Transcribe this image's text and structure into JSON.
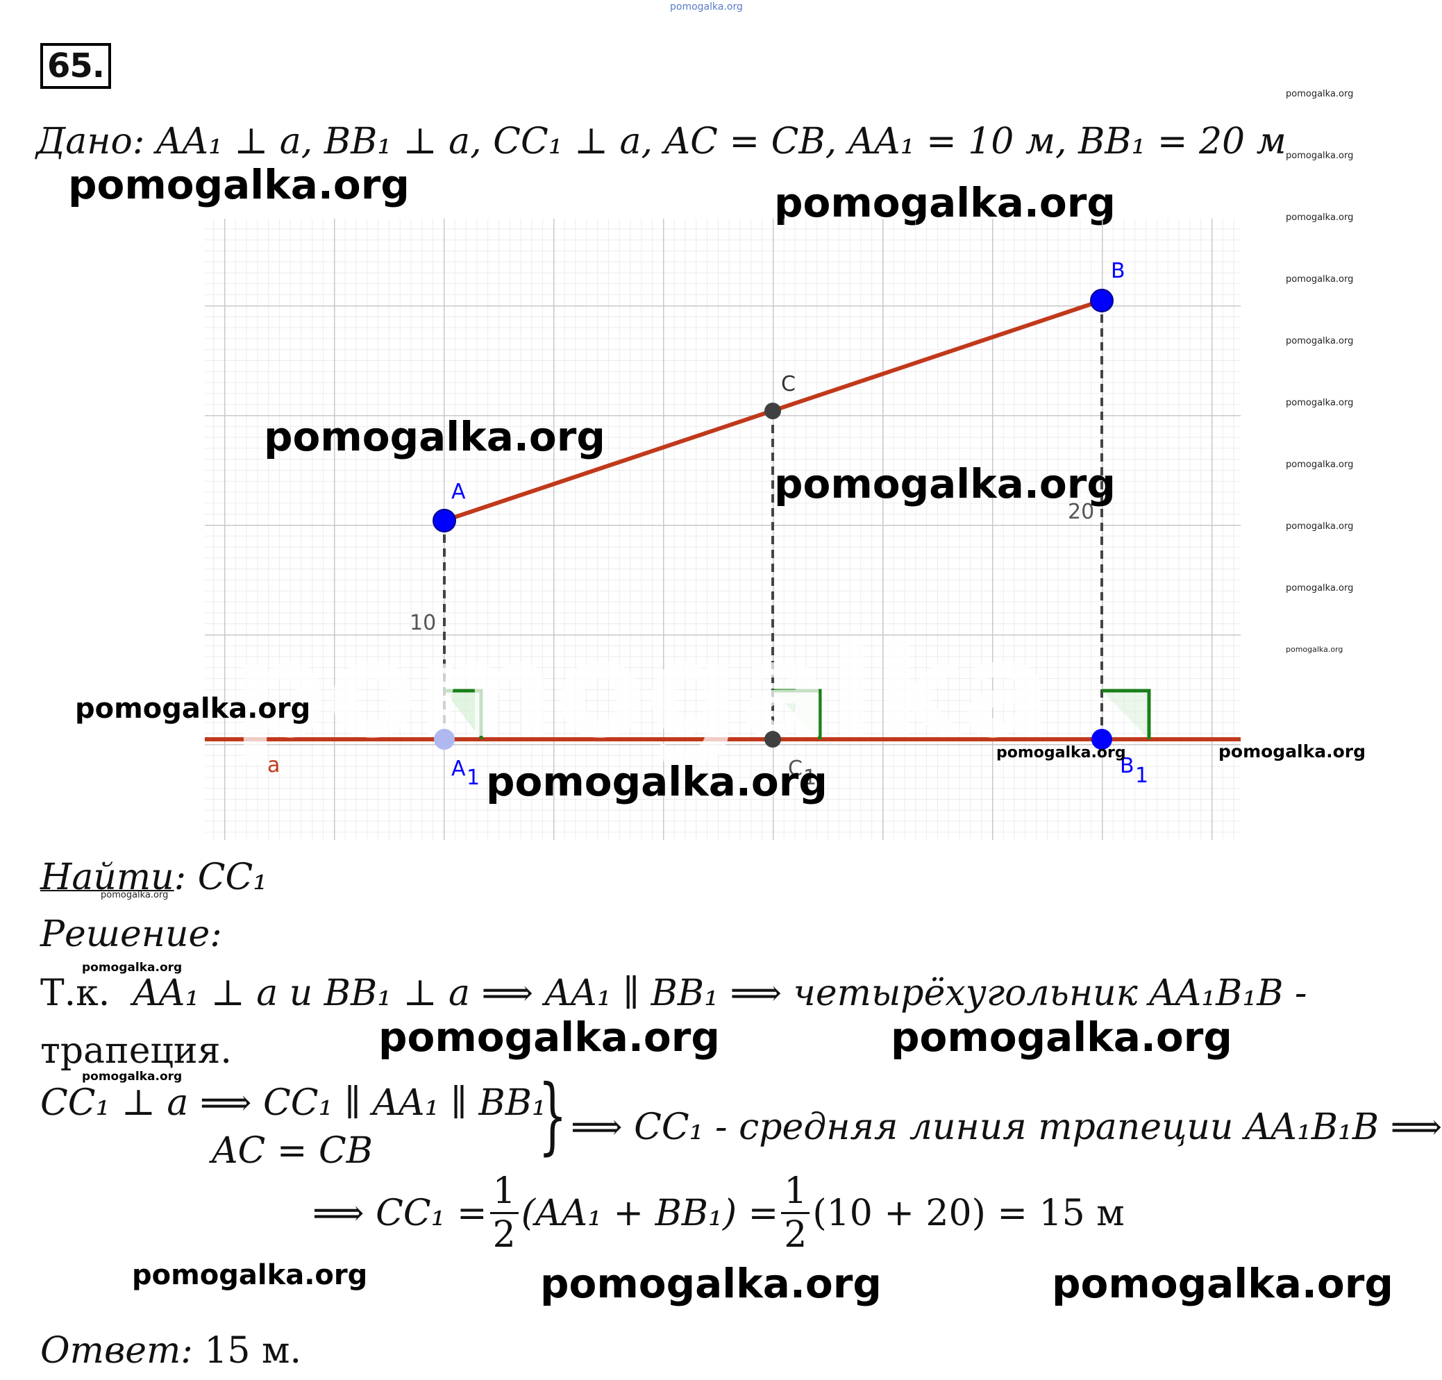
{
  "header": {
    "watermark": "pomogalka.org",
    "problem_number": "65."
  },
  "given": {
    "label": "Дано",
    "statement_1": "AA",
    "statement_text": ": AA₁ ⊥ a, BB₁ ⊥ a, CC₁ ⊥ a, AC = CB, AA₁ = 10 м, BB₁ = 20 м"
  },
  "figure": {
    "points": {
      "A": "A",
      "B": "B",
      "C": "C",
      "A1": "A",
      "B1": "B",
      "C1": "C",
      "sub1": "1",
      "line_a": "a"
    },
    "tick_10": "10",
    "tick_20": "20",
    "colors": {
      "segment": "#c0391b",
      "point_blue": "#0000ff",
      "point_gray": "#404040",
      "grid": "#dcdcdc",
      "dashed": "#444444",
      "right_angle": "#1a7f1a"
    }
  },
  "find": {
    "label": "Найти",
    "value": ": CC₁"
  },
  "solution": {
    "label": "Решение:",
    "line1_prefix": "Т.к.",
    "line1_math": "AA₁ ⊥ a и BB₁ ⊥ a ⟹ AA₁ ∥ BB₁ ⟹ четырёхугольник AA₁B₁B -",
    "line2": "трапеция.",
    "line3a": "CC₁ ⊥ a ⟹ CC₁ ∥ AA₁ ∥ BB₁",
    "line3b": "AC = CB",
    "line3c": "⟹ CC₁ - средняя линия трапеции AA₁B₁B ⟹",
    "formula_left": "⟹ CC₁ =",
    "frac_num": "1",
    "frac_den": "2",
    "formula_mid": "(AA₁ + BB₁) =",
    "formula_right": "(10 + 20) = 15 м"
  },
  "answer": {
    "label": "Ответ:",
    "value": "15 м."
  }
}
